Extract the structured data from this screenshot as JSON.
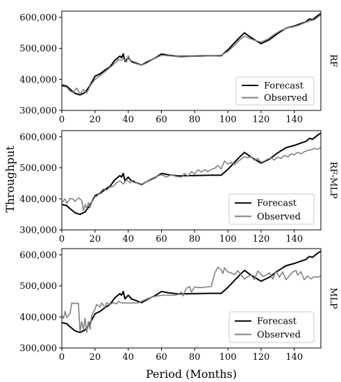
{
  "chart_data": {
    "type": "line",
    "xlabel": "Period (Months)",
    "ylabel": "Throughput",
    "xlim": [
      0,
      156
    ],
    "ylim": [
      300000,
      620000
    ],
    "xticks": [
      0,
      20,
      40,
      60,
      80,
      100,
      120,
      140
    ],
    "yticks": [
      300000,
      400000,
      500000,
      600000
    ],
    "ytick_labels": [
      "300,000",
      "400,000",
      "500,000",
      "600,000"
    ],
    "legend_placement": "lower-right",
    "colors": {
      "forecast": "#000000",
      "observed": "#808080"
    },
    "legend": {
      "forecast": "Forecast",
      "observed": "Observed"
    },
    "forecast": [
      [
        0,
        382000
      ],
      [
        3,
        378000
      ],
      [
        5,
        368000
      ],
      [
        8,
        355000
      ],
      [
        11,
        350000
      ],
      [
        14,
        358000
      ],
      [
        17,
        380000
      ],
      [
        20,
        410000
      ],
      [
        23,
        418000
      ],
      [
        26,
        430000
      ],
      [
        29,
        440000
      ],
      [
        32,
        462000
      ],
      [
        35,
        475000
      ],
      [
        36,
        470000
      ],
      [
        37,
        482000
      ],
      [
        38,
        458000
      ],
      [
        40,
        470000
      ],
      [
        42,
        458000
      ],
      [
        45,
        452000
      ],
      [
        48,
        446000
      ],
      [
        52,
        458000
      ],
      [
        56,
        468000
      ],
      [
        60,
        482000
      ],
      [
        64,
        478000
      ],
      [
        70,
        474000
      ],
      [
        80,
        475000
      ],
      [
        90,
        476000
      ],
      [
        96,
        476000
      ],
      [
        100,
        495000
      ],
      [
        104,
        518000
      ],
      [
        108,
        540000
      ],
      [
        110,
        550000
      ],
      [
        113,
        538000
      ],
      [
        116,
        528000
      ],
      [
        120,
        515000
      ],
      [
        125,
        528000
      ],
      [
        130,
        548000
      ],
      [
        135,
        565000
      ],
      [
        140,
        572000
      ],
      [
        144,
        580000
      ],
      [
        147,
        585000
      ],
      [
        149,
        595000
      ],
      [
        151,
        592000
      ],
      [
        154,
        605000
      ],
      [
        156,
        612000
      ]
    ],
    "panels": [
      {
        "label": "RF",
        "observed": [
          [
            0,
            378000
          ],
          [
            3,
            375000
          ],
          [
            5,
            362000
          ],
          [
            7,
            358000
          ],
          [
            9,
            372000
          ],
          [
            11,
            352000
          ],
          [
            13,
            368000
          ],
          [
            15,
            356000
          ],
          [
            17,
            378000
          ],
          [
            20,
            400000
          ],
          [
            23,
            412000
          ],
          [
            26,
            425000
          ],
          [
            29,
            438000
          ],
          [
            32,
            452000
          ],
          [
            34,
            464000
          ],
          [
            36,
            462000
          ],
          [
            37,
            468000
          ],
          [
            39,
            455000
          ],
          [
            40,
            476000
          ],
          [
            42,
            455000
          ],
          [
            45,
            450000
          ],
          [
            48,
            446000
          ],
          [
            51,
            452000
          ],
          [
            54,
            462000
          ],
          [
            57,
            470000
          ],
          [
            60,
            478000
          ],
          [
            64,
            476000
          ],
          [
            68,
            474000
          ],
          [
            72,
            472000
          ],
          [
            78,
            474000
          ],
          [
            84,
            474000
          ],
          [
            90,
            476000
          ],
          [
            96,
            478000
          ],
          [
            100,
            490000
          ],
          [
            104,
            510000
          ],
          [
            108,
            532000
          ],
          [
            110,
            540000
          ],
          [
            113,
            532000
          ],
          [
            116,
            526000
          ],
          [
            120,
            520000
          ],
          [
            124,
            530000
          ],
          [
            128,
            545000
          ],
          [
            132,
            558000
          ],
          [
            136,
            566000
          ],
          [
            140,
            570000
          ],
          [
            143,
            575000
          ],
          [
            146,
            582000
          ],
          [
            149,
            588000
          ],
          [
            152,
            592000
          ],
          [
            156,
            608000
          ]
        ]
      },
      {
        "label": "RF-MLP",
        "observed": [
          [
            0,
            388000
          ],
          [
            2,
            400000
          ],
          [
            3,
            385000
          ],
          [
            5,
            402000
          ],
          [
            7,
            398000
          ],
          [
            8,
            392000
          ],
          [
            10,
            403000
          ],
          [
            12,
            395000
          ],
          [
            13,
            362000
          ],
          [
            14,
            382000
          ],
          [
            15,
            368000
          ],
          [
            16,
            388000
          ],
          [
            17,
            372000
          ],
          [
            19,
            405000
          ],
          [
            21,
            408000
          ],
          [
            23,
            420000
          ],
          [
            25,
            432000
          ],
          [
            27,
            428000
          ],
          [
            29,
            438000
          ],
          [
            31,
            440000
          ],
          [
            33,
            452000
          ],
          [
            35,
            458000
          ],
          [
            37,
            448000
          ],
          [
            39,
            462000
          ],
          [
            41,
            452000
          ],
          [
            43,
            460000
          ],
          [
            45,
            452000
          ],
          [
            47,
            446000
          ],
          [
            50,
            452000
          ],
          [
            53,
            462000
          ],
          [
            56,
            470000
          ],
          [
            60,
            478000
          ],
          [
            63,
            470000
          ],
          [
            66,
            478000
          ],
          [
            69,
            472000
          ],
          [
            72,
            470000
          ],
          [
            74,
            482000
          ],
          [
            76,
            472000
          ],
          [
            78,
            488000
          ],
          [
            80,
            480000
          ],
          [
            82,
            494000
          ],
          [
            84,
            486000
          ],
          [
            86,
            494000
          ],
          [
            88,
            487000
          ],
          [
            90,
            495000
          ],
          [
            92,
            498000
          ],
          [
            94,
            508000
          ],
          [
            96,
            496000
          ],
          [
            98,
            522000
          ],
          [
            100,
            512000
          ],
          [
            102,
            518000
          ],
          [
            104,
            510000
          ],
          [
            106,
            520000
          ],
          [
            108,
            528000
          ],
          [
            110,
            536000
          ],
          [
            112,
            532000
          ],
          [
            114,
            536000
          ],
          [
            116,
            524000
          ],
          [
            118,
            530000
          ],
          [
            120,
            518000
          ],
          [
            122,
            522000
          ],
          [
            124,
            528000
          ],
          [
            126,
            532000
          ],
          [
            128,
            525000
          ],
          [
            130,
            535000
          ],
          [
            132,
            530000
          ],
          [
            134,
            540000
          ],
          [
            136,
            535000
          ],
          [
            138,
            545000
          ],
          [
            140,
            542000
          ],
          [
            142,
            550000
          ],
          [
            144,
            545000
          ],
          [
            146,
            552000
          ],
          [
            148,
            556000
          ],
          [
            150,
            558000
          ],
          [
            152,
            562000
          ],
          [
            154,
            560000
          ],
          [
            156,
            566000
          ]
        ]
      },
      {
        "label": "MLP",
        "observed": [
          [
            0,
            405000
          ],
          [
            1,
            395000
          ],
          [
            2,
            418000
          ],
          [
            3,
            398000
          ],
          [
            5,
            412000
          ],
          [
            6,
            445000
          ],
          [
            8,
            443000
          ],
          [
            10,
            444000
          ],
          [
            11,
            352000
          ],
          [
            12,
            385000
          ],
          [
            13,
            360000
          ],
          [
            14,
            396000
          ],
          [
            15,
            350000
          ],
          [
            16,
            385000
          ],
          [
            17,
            360000
          ],
          [
            18,
            405000
          ],
          [
            19,
            415000
          ],
          [
            20,
            425000
          ],
          [
            21,
            440000
          ],
          [
            23,
            432000
          ],
          [
            24,
            445000
          ],
          [
            26,
            430000
          ],
          [
            27,
            446000
          ],
          [
            29,
            440000
          ],
          [
            31,
            446000
          ],
          [
            33,
            442000
          ],
          [
            34,
            450000
          ],
          [
            36,
            445000
          ],
          [
            40,
            445000
          ],
          [
            46,
            445000
          ],
          [
            48,
            450000
          ],
          [
            50,
            455000
          ],
          [
            52,
            460000
          ],
          [
            55,
            465000
          ],
          [
            58,
            468000
          ],
          [
            61,
            470000
          ],
          [
            64,
            470000
          ],
          [
            68,
            470000
          ],
          [
            70,
            472000
          ],
          [
            72,
            480000
          ],
          [
            73,
            468000
          ],
          [
            75,
            492000
          ],
          [
            77,
            498000
          ],
          [
            78,
            480000
          ],
          [
            80,
            497000
          ],
          [
            82,
            495000
          ],
          [
            84,
            495000
          ],
          [
            86,
            496000
          ],
          [
            88,
            497000
          ],
          [
            90,
            498000
          ],
          [
            92,
            540000
          ],
          [
            94,
            560000
          ],
          [
            96,
            552000
          ],
          [
            97,
            540000
          ],
          [
            98,
            558000
          ],
          [
            100,
            545000
          ],
          [
            102,
            542000
          ],
          [
            104,
            536000
          ],
          [
            106,
            550000
          ],
          [
            108,
            535000
          ],
          [
            110,
            522000
          ],
          [
            112,
            530000
          ],
          [
            114,
            535000
          ],
          [
            116,
            520000
          ],
          [
            118,
            548000
          ],
          [
            120,
            538000
          ],
          [
            121,
            530000
          ],
          [
            123,
            535000
          ],
          [
            125,
            542000
          ],
          [
            127,
            522000
          ],
          [
            129,
            548000
          ],
          [
            131,
            528000
          ],
          [
            133,
            545000
          ],
          [
            135,
            520000
          ],
          [
            137,
            532000
          ],
          [
            139,
            545000
          ],
          [
            141,
            550000
          ],
          [
            142,
            535000
          ],
          [
            144,
            546000
          ],
          [
            146,
            520000
          ],
          [
            148,
            532000
          ],
          [
            150,
            522000
          ],
          [
            152,
            530000
          ],
          [
            154,
            528000
          ],
          [
            156,
            532000
          ]
        ]
      }
    ]
  }
}
